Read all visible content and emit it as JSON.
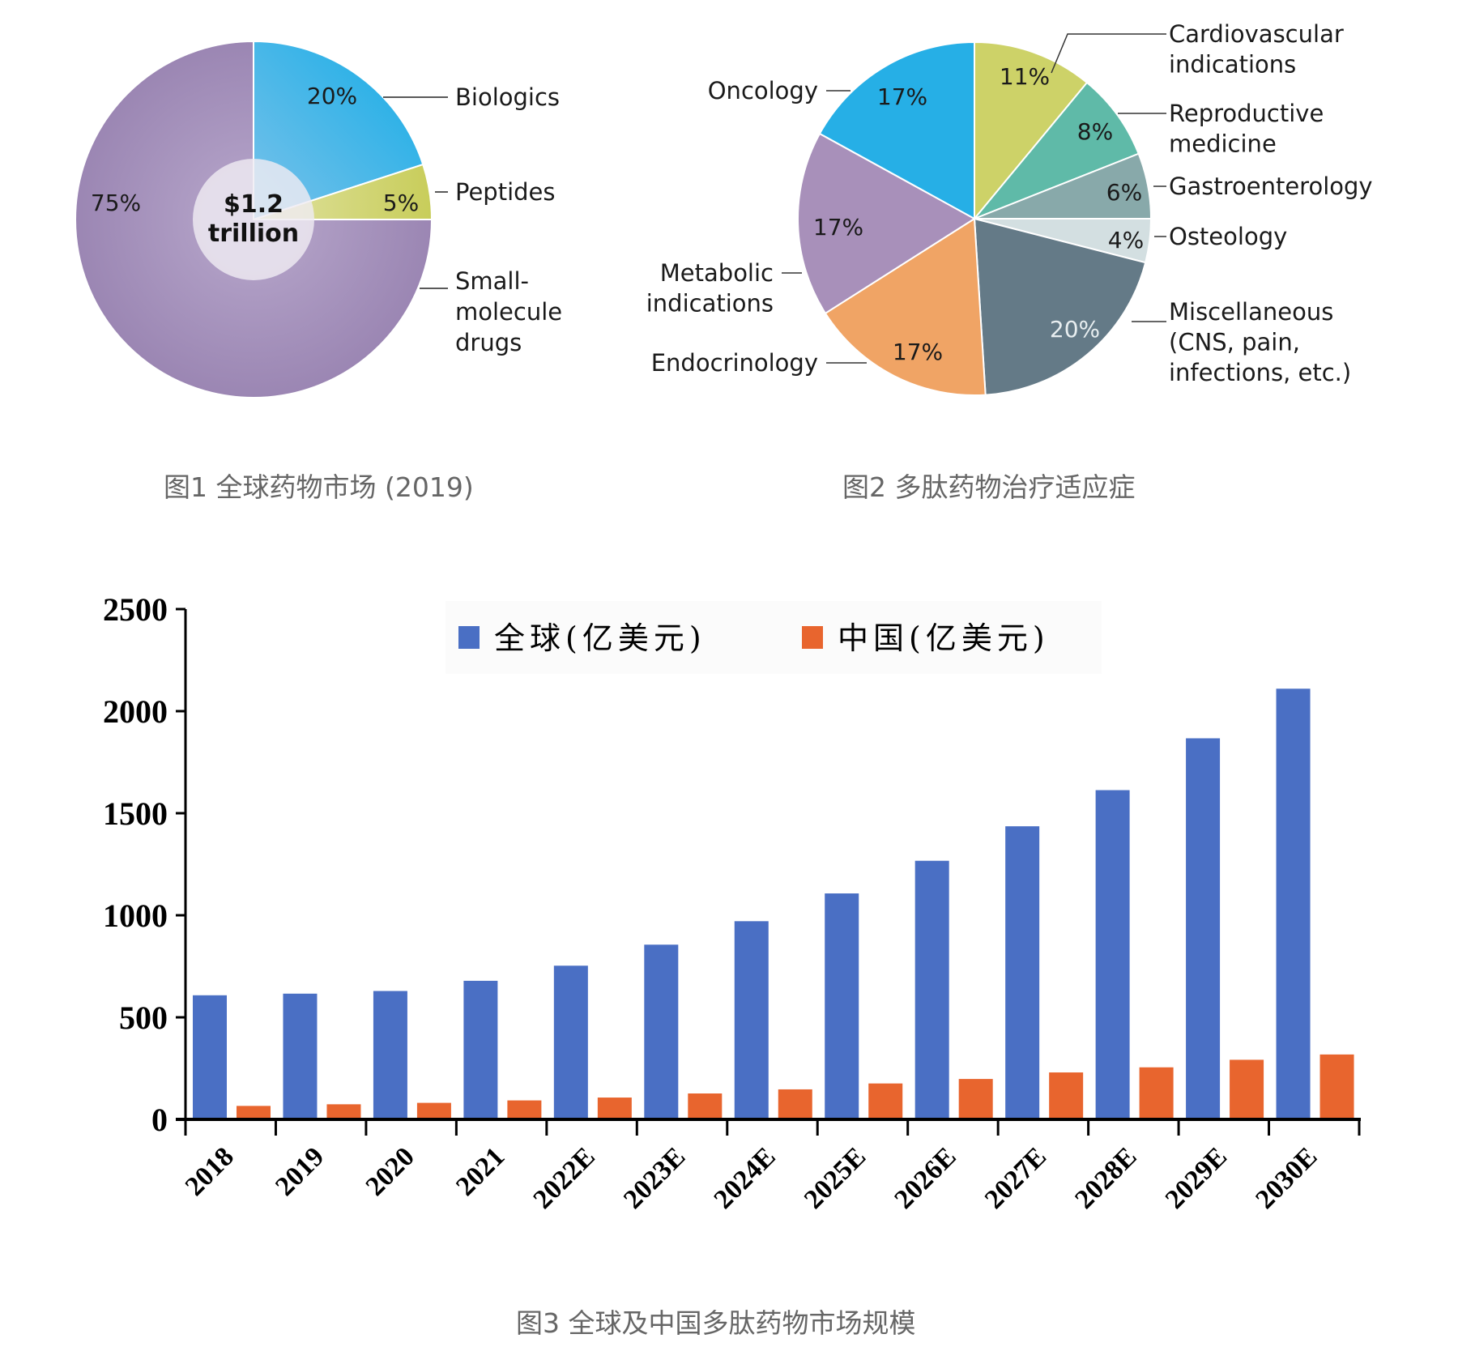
{
  "figure1": {
    "caption": "图1 全球药物市场 (2019)",
    "center_label_line1": "$1.2",
    "center_label_line2": "trillion"
  },
  "figure2": {
    "caption": "图2 多肽药物治疗适应症"
  },
  "figure3": {
    "caption": "图3 全球及中国多肽药物市场规模"
  },
  "chart_data": [
    {
      "type": "pie",
      "title": "图1 全球药物市场 (2019)",
      "center_text": "$1.2 trillion",
      "start_angle": "12 o'clock, clockwise",
      "categories": [
        "Biologics",
        "Peptides",
        "Small-molecule drugs"
      ],
      "values": [
        20,
        5,
        75
      ],
      "labels": [
        "20%",
        "5%",
        "75%"
      ],
      "colors": [
        "#2ab0e8",
        "#cdd36a",
        "#a48db8"
      ],
      "legend_labels": [
        [
          "Biologics"
        ],
        [
          "Peptides"
        ],
        [
          "Small-",
          "molecule",
          "drugs"
        ]
      ]
    },
    {
      "type": "pie",
      "title": "图2 多肽药物治疗适应症",
      "start_angle": "12 o'clock, clockwise",
      "categories": [
        "Cardiovascular indications",
        "Reproductive medicine",
        "Gastroenterology",
        "Osteology",
        "Miscellaneous (CNS, pain, infections, etc.)",
        "Endocrinology",
        "Metabolic indications",
        "Oncology"
      ],
      "values": [
        11,
        8,
        6,
        4,
        20,
        17,
        17,
        17
      ],
      "labels": [
        "11%",
        "8%",
        "6%",
        "4%",
        "20%",
        "17%",
        "17%",
        "17%"
      ],
      "colors": [
        "#cdd268",
        "#5fbaa8",
        "#88a9aa",
        "#d3dfe1",
        "#647a87",
        "#f0a465",
        "#a890ba",
        "#26afe6"
      ],
      "legend_labels": [
        [
          "Cardiovascular",
          "indications"
        ],
        [
          "Reproductive",
          "medicine"
        ],
        [
          "Gastroenterology"
        ],
        [
          "Osteology"
        ],
        [
          "Miscellaneous",
          "(CNS, pain,",
          "infections, etc.)"
        ],
        [
          "Endocrinology"
        ],
        [
          "Metabolic",
          "indications"
        ],
        [
          "Oncology"
        ]
      ]
    },
    {
      "type": "bar",
      "title": "图3 全球及中国多肽药物市场规模",
      "categories": [
        "2018",
        "2019",
        "2020",
        "2021",
        "2022E",
        "2023E",
        "2024E",
        "2025E",
        "2026E",
        "2027E",
        "2028E",
        "2029E",
        "2030E"
      ],
      "series": [
        {
          "name": "全球(亿美元)",
          "color": "#4a6fc4",
          "values": [
            608,
            616,
            629,
            679,
            753,
            856,
            971,
            1107,
            1267,
            1436,
            1613,
            1867,
            2110
          ]
        },
        {
          "name": "中国(亿美元)",
          "color": "#e8652e",
          "values": [
            66,
            74,
            81,
            93,
            107,
            127,
            147,
            176,
            198,
            230,
            255,
            292,
            318
          ]
        }
      ],
      "xlabel": "",
      "ylabel": "",
      "ylim": [
        0,
        2500
      ],
      "yticks": [
        0,
        500,
        1000,
        1500,
        2000,
        2500
      ],
      "grid": false,
      "legend_position": "top center",
      "xtick_rotation": -45
    }
  ]
}
